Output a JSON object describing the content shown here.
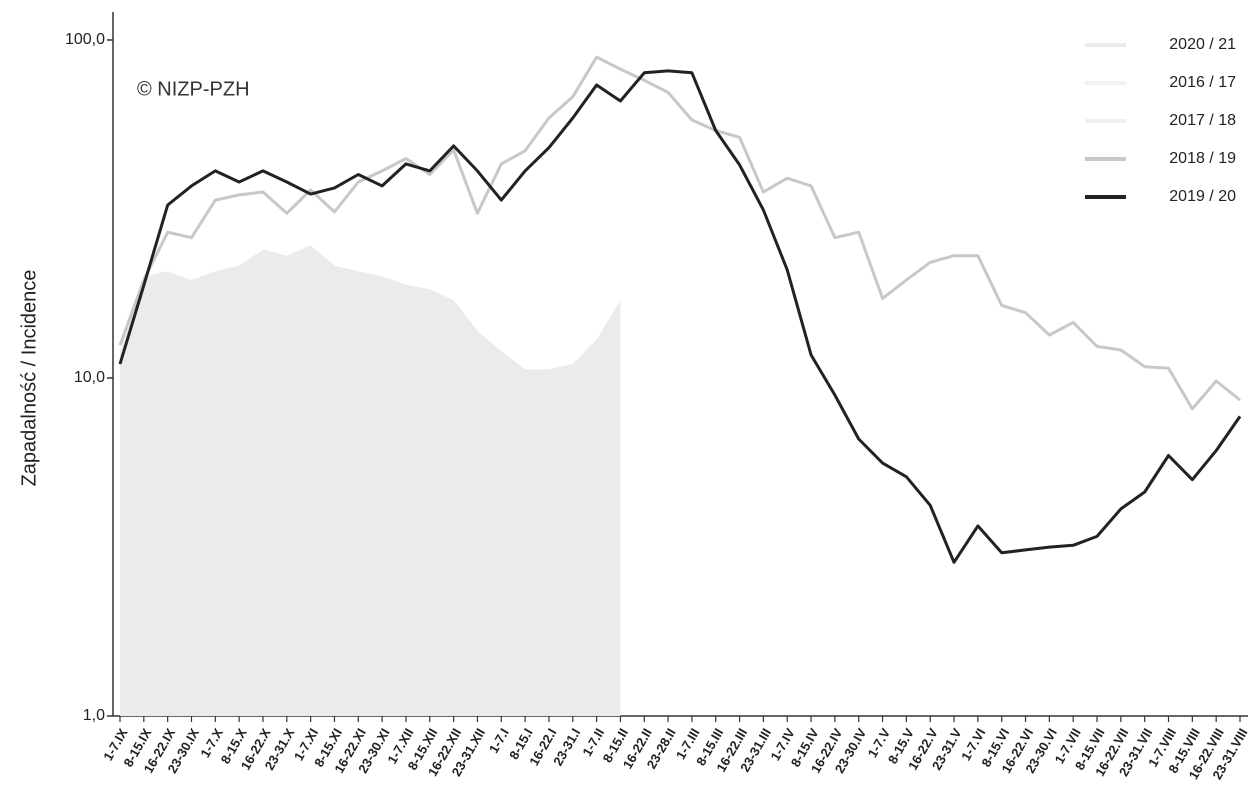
{
  "chart_data": {
    "type": "line",
    "ylabel": "Zapadalność / Incidence",
    "annotation": "© NIZP-PZH",
    "log_scale": true,
    "ylim": [
      1,
      100
    ],
    "yticks": [
      {
        "value": 1,
        "label": "1,0"
      },
      {
        "value": 10,
        "label": "10,0"
      },
      {
        "value": 100,
        "label": "100,0"
      }
    ],
    "legend": "top-right",
    "categories": [
      "1-7.IX",
      "8-15.IX",
      "16-22.IX",
      "23-30.IX",
      "1-7.X",
      "8-15.X",
      "16-22.X",
      "23-31.X",
      "1-7.XI",
      "8-15.XI",
      "16-22.XI",
      "23-30.XI",
      "1-7.XII",
      "8-15.XII",
      "16-22.XII",
      "23-31.XII",
      "1-7.I",
      "8-15.I",
      "16-22.I",
      "23-31.I",
      "1-7.II",
      "8-15.II",
      "16-22.II",
      "23-28.II",
      "1-7.III",
      "8-15.III",
      "16-22.III",
      "23-31.III",
      "1-7.IV",
      "8-15.IV",
      "16-22.IV",
      "23-30.IV",
      "1-7.V",
      "8-15.V",
      "16-22.V",
      "23-31.V",
      "1-7.VI",
      "8-15.VI",
      "16-22.VI",
      "23-30.VI",
      "1-7.VII",
      "8-15.VII",
      "16-22.VII",
      "23-31.VII",
      "1-7.VIII",
      "8-15.VIII",
      "16-22.VIII",
      "23-31.VIII"
    ],
    "series": [
      {
        "name": "2020 / 21",
        "color": "#ebebeb",
        "style": "area",
        "values": [
          12,
          20,
          20.7,
          19.5,
          20.7,
          21.5,
          24,
          23,
          24.7,
          21.5,
          20.7,
          20,
          18.9,
          18.3,
          17,
          13.8,
          12,
          10.6,
          10.6,
          11,
          13,
          17,
          null,
          null,
          null,
          null,
          null,
          null,
          null,
          null,
          null,
          null,
          null,
          null,
          null,
          null,
          null,
          null,
          null,
          null,
          null,
          null,
          null,
          null,
          null,
          null,
          null,
          null
        ]
      },
      {
        "name": "2016 / 17",
        "color": "#f2f2f2",
        "values": [
          null,
          null,
          null,
          null,
          null,
          null,
          null,
          null,
          null,
          null,
          null,
          null,
          null,
          null,
          null,
          null,
          null,
          null,
          null,
          null,
          null,
          null,
          null,
          null,
          null,
          null,
          null,
          null,
          null,
          null,
          null,
          null,
          null,
          null,
          null,
          null,
          null,
          null,
          null,
          null,
          null,
          null,
          null,
          null,
          null,
          null,
          null,
          null
        ]
      },
      {
        "name": "2017 / 18",
        "color": "#efefef",
        "values": [
          null,
          null,
          null,
          null,
          null,
          null,
          null,
          null,
          null,
          null,
          null,
          null,
          null,
          null,
          null,
          null,
          null,
          null,
          null,
          null,
          null,
          null,
          null,
          null,
          null,
          null,
          null,
          null,
          null,
          null,
          null,
          null,
          null,
          null,
          null,
          null,
          null,
          null,
          null,
          null,
          null,
          null,
          null,
          null,
          null,
          null,
          null,
          null
        ]
      },
      {
        "name": "2018 / 19",
        "color": "#c8c8c8",
        "values": [
          12.5,
          19.5,
          27,
          26,
          33.6,
          34.8,
          35.5,
          30.7,
          36,
          31,
          38,
          41,
          44.6,
          40,
          47.3,
          30.7,
          43,
          47,
          58.8,
          67.9,
          89,
          82,
          76,
          70,
          58,
          54,
          51.5,
          35.5,
          39,
          37,
          26,
          27,
          17.2,
          19.5,
          22,
          23,
          23,
          16.4,
          15.6,
          13.4,
          14.6,
          12.4,
          12.1,
          10.8,
          10.7,
          8.1,
          9.8,
          8.6
        ]
      },
      {
        "name": "2019 / 20",
        "color": "#222222",
        "values": [
          11,
          18.8,
          32.5,
          37,
          41,
          38,
          41,
          38,
          35,
          36.5,
          40,
          37,
          43,
          41,
          48.6,
          41,
          33.6,
          41,
          48,
          58.8,
          73.6,
          66,
          80,
          81,
          80,
          54,
          42.7,
          31.4,
          20.9,
          11.7,
          8.9,
          6.6,
          5.6,
          5.1,
          4.2,
          2.85,
          3.65,
          3.04,
          3.1,
          3.16,
          3.2,
          3.4,
          4.1,
          4.6,
          5.9,
          5.0,
          6.1,
          7.7
        ]
      }
    ]
  }
}
